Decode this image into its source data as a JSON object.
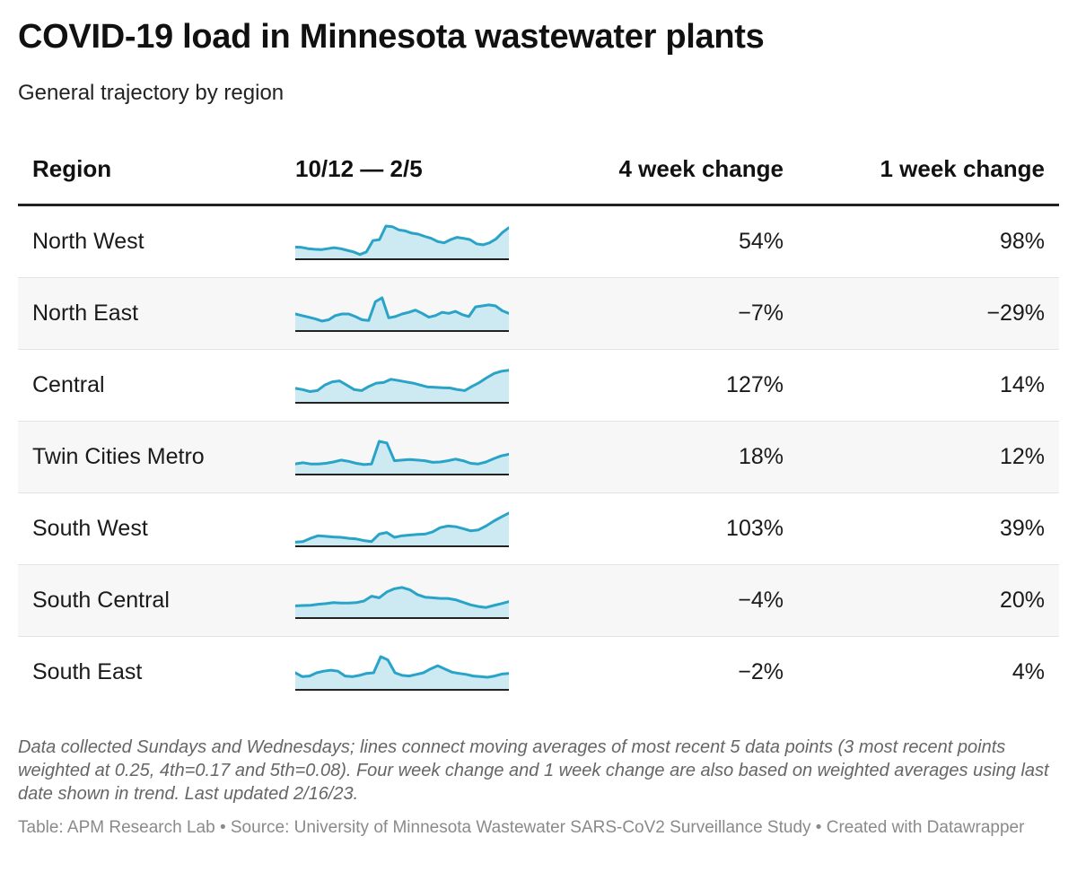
{
  "title": "COVID-19 load in Minnesota wastewater plants",
  "subtitle": "General trajectory by region",
  "columns": {
    "region": "Region",
    "trend": "10/12 — 2/5",
    "four_week": "4 week change",
    "one_week": "1 week change"
  },
  "notes": "Data collected Sundays and Wednesdays; lines connect moving averages of most recent 5 data points (3 most recent points weighted at 0.25, 4th=0.17 and 5th=0.08). Four week change and 1 week change are also based on weighted averages using last date shown in trend. Last updated 2/16/23.",
  "credits": "Table: APM Research Lab • Source: University of Minnesota Wastewater SARS-CoV2 Surveillance Study • Created with Datawrapper",
  "colors": {
    "spark_line": "#29a3c8",
    "spark_fill": "#cdeaf3",
    "baseline": "#222222",
    "alt_row": "#f7f7f7"
  },
  "chart_data": {
    "type": "table",
    "rows": [
      {
        "region": "North West",
        "four_week": "54%",
        "one_week": "98%",
        "trend": [
          0.35,
          0.34,
          0.3,
          0.28,
          0.27,
          0.3,
          0.33,
          0.3,
          0.25,
          0.2,
          0.12,
          0.2,
          0.55,
          0.58,
          1.0,
          0.98,
          0.88,
          0.85,
          0.78,
          0.75,
          0.68,
          0.62,
          0.52,
          0.48,
          0.58,
          0.65,
          0.62,
          0.58,
          0.45,
          0.42,
          0.48,
          0.6,
          0.8,
          0.95
        ]
      },
      {
        "region": "North East",
        "four_week": "−7%",
        "one_week": "−29%",
        "trend": [
          0.5,
          0.45,
          0.4,
          0.35,
          0.28,
          0.32,
          0.45,
          0.5,
          0.5,
          0.42,
          0.32,
          0.3,
          0.88,
          1.0,
          0.38,
          0.42,
          0.5,
          0.55,
          0.62,
          0.52,
          0.4,
          0.45,
          0.55,
          0.52,
          0.58,
          0.48,
          0.42,
          0.72,
          0.75,
          0.78,
          0.75,
          0.6,
          0.52
        ]
      },
      {
        "region": "Central",
        "four_week": "127%",
        "one_week": "14%",
        "trend": [
          0.42,
          0.38,
          0.32,
          0.35,
          0.52,
          0.62,
          0.65,
          0.52,
          0.38,
          0.35,
          0.48,
          0.58,
          0.6,
          0.7,
          0.66,
          0.62,
          0.58,
          0.52,
          0.46,
          0.45,
          0.44,
          0.43,
          0.38,
          0.35,
          0.48,
          0.6,
          0.75,
          0.88,
          0.95,
          0.98
        ]
      },
      {
        "region": "Twin Cities Metro",
        "four_week": "18%",
        "one_week": "12%",
        "trend": [
          0.3,
          0.34,
          0.3,
          0.3,
          0.32,
          0.36,
          0.42,
          0.38,
          0.32,
          0.28,
          0.3,
          1.0,
          0.95,
          0.4,
          0.42,
          0.44,
          0.42,
          0.4,
          0.35,
          0.36,
          0.4,
          0.45,
          0.4,
          0.32,
          0.3,
          0.36,
          0.46,
          0.55,
          0.6
        ]
      },
      {
        "region": "South West",
        "four_week": "103%",
        "one_week": "39%",
        "trend": [
          0.1,
          0.12,
          0.22,
          0.3,
          0.28,
          0.26,
          0.25,
          0.22,
          0.2,
          0.15,
          0.12,
          0.35,
          0.4,
          0.25,
          0.3,
          0.32,
          0.34,
          0.35,
          0.42,
          0.55,
          0.6,
          0.58,
          0.52,
          0.45,
          0.48,
          0.6,
          0.75,
          0.88,
          1.0
        ]
      },
      {
        "region": "South Central",
        "four_week": "−4%",
        "one_week": "20%",
        "trend": [
          0.35,
          0.36,
          0.37,
          0.4,
          0.42,
          0.45,
          0.44,
          0.44,
          0.45,
          0.5,
          0.65,
          0.6,
          0.78,
          0.88,
          0.92,
          0.85,
          0.7,
          0.62,
          0.6,
          0.58,
          0.58,
          0.54,
          0.46,
          0.38,
          0.33,
          0.3,
          0.36,
          0.42,
          0.48
        ]
      },
      {
        "region": "South East",
        "four_week": "−2%",
        "one_week": "4%",
        "trend": [
          0.5,
          0.38,
          0.4,
          0.5,
          0.55,
          0.58,
          0.55,
          0.4,
          0.38,
          0.42,
          0.48,
          0.5,
          1.0,
          0.9,
          0.5,
          0.42,
          0.4,
          0.45,
          0.5,
          0.62,
          0.72,
          0.62,
          0.52,
          0.48,
          0.45,
          0.4,
          0.38,
          0.36,
          0.4,
          0.46,
          0.48
        ]
      }
    ]
  }
}
